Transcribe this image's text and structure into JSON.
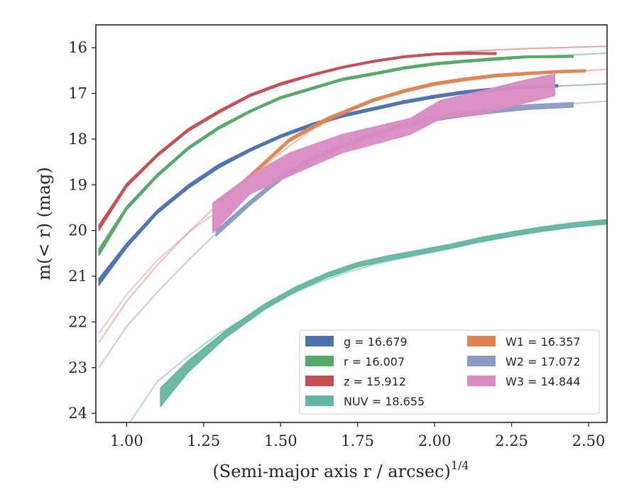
{
  "chart_data": {
    "type": "line",
    "xlabel": "(Semi-major axis r / arcsec)",
    "xlabel_superscript": "1/4",
    "ylabel": "m(< r) (mag)",
    "xlim": [
      0.9,
      2.56
    ],
    "ylim": [
      24.2,
      15.5
    ],
    "y_inverted": true,
    "x_ticks": [
      "1.00",
      "1.25",
      "1.50",
      "1.75",
      "2.00",
      "2.25",
      "2.50"
    ],
    "y_ticks": [
      "16",
      "17",
      "18",
      "19",
      "20",
      "21",
      "22",
      "23",
      "24"
    ],
    "grid": false,
    "legend_position": "lower-right",
    "series": [
      {
        "name": "g",
        "legend": "g = 16.679",
        "color": "#4C72B0",
        "faint": [
          [
            0.91,
            21.15
          ],
          [
            1.0,
            20.35
          ],
          [
            1.1,
            19.6
          ],
          [
            1.2,
            19.05
          ],
          [
            1.3,
            18.6
          ],
          [
            1.4,
            18.25
          ],
          [
            1.5,
            17.95
          ],
          [
            1.6,
            17.7
          ],
          [
            1.7,
            17.5
          ],
          [
            1.8,
            17.35
          ],
          [
            1.9,
            17.2
          ],
          [
            2.0,
            17.08
          ],
          [
            2.1,
            16.98
          ],
          [
            2.2,
            16.92
          ],
          [
            2.3,
            16.87
          ],
          [
            2.4,
            16.84
          ],
          [
            2.5,
            16.81
          ],
          [
            2.56,
            16.79
          ]
        ],
        "band": [
          [
            0.91,
            21.2,
            21.05
          ],
          [
            1.0,
            20.38,
            20.28
          ],
          [
            1.1,
            19.63,
            19.55
          ],
          [
            1.2,
            19.08,
            19.0
          ],
          [
            1.3,
            18.63,
            18.55
          ],
          [
            1.4,
            18.27,
            18.21
          ],
          [
            1.5,
            17.97,
            17.91
          ],
          [
            1.6,
            17.72,
            17.66
          ],
          [
            1.7,
            17.52,
            17.46
          ],
          [
            1.8,
            17.37,
            17.31
          ],
          [
            1.9,
            17.22,
            17.16
          ],
          [
            2.0,
            17.1,
            17.04
          ],
          [
            2.1,
            17.0,
            16.94
          ],
          [
            2.2,
            16.94,
            16.88
          ],
          [
            2.3,
            16.89,
            16.84
          ],
          [
            2.4,
            16.86,
            16.81
          ]
        ]
      },
      {
        "name": "r",
        "legend": "r = 16.007",
        "color": "#55A868",
        "faint": [
          [
            0.91,
            20.45
          ],
          [
            1.0,
            19.5
          ],
          [
            1.1,
            18.8
          ],
          [
            1.2,
            18.2
          ],
          [
            1.3,
            17.75
          ],
          [
            1.4,
            17.4
          ],
          [
            1.5,
            17.1
          ],
          [
            1.6,
            16.9
          ],
          [
            1.7,
            16.7
          ],
          [
            1.8,
            16.58
          ],
          [
            1.9,
            16.45
          ],
          [
            2.0,
            16.36
          ],
          [
            2.1,
            16.3
          ],
          [
            2.2,
            16.25
          ],
          [
            2.3,
            16.2
          ],
          [
            2.4,
            16.17
          ],
          [
            2.5,
            16.14
          ],
          [
            2.56,
            16.12
          ]
        ],
        "band": [
          [
            0.91,
            20.55,
            20.4
          ],
          [
            1.0,
            19.55,
            19.47
          ],
          [
            1.1,
            18.83,
            18.76
          ],
          [
            1.2,
            18.23,
            18.17
          ],
          [
            1.3,
            17.78,
            17.72
          ],
          [
            1.4,
            17.42,
            17.37
          ],
          [
            1.5,
            17.12,
            17.07
          ],
          [
            1.6,
            16.92,
            16.87
          ],
          [
            1.7,
            16.72,
            16.67
          ],
          [
            1.8,
            16.6,
            16.55
          ],
          [
            1.9,
            16.47,
            16.42
          ],
          [
            2.0,
            16.38,
            16.33
          ],
          [
            2.1,
            16.32,
            16.27
          ],
          [
            2.2,
            16.27,
            16.22
          ],
          [
            2.3,
            16.22,
            16.18
          ],
          [
            2.45,
            16.21,
            16.17
          ]
        ]
      },
      {
        "name": "z",
        "legend": "z = 15.912",
        "color": "#C44E52",
        "faint": [
          [
            0.91,
            19.9
          ],
          [
            1.0,
            19.0
          ],
          [
            1.1,
            18.35
          ],
          [
            1.2,
            17.8
          ],
          [
            1.3,
            17.4
          ],
          [
            1.4,
            17.05
          ],
          [
            1.5,
            16.8
          ],
          [
            1.6,
            16.6
          ],
          [
            1.7,
            16.43
          ],
          [
            1.8,
            16.3
          ],
          [
            1.9,
            16.2
          ],
          [
            2.0,
            16.13
          ],
          [
            2.1,
            16.08
          ],
          [
            2.2,
            16.05
          ],
          [
            2.3,
            16.02
          ],
          [
            2.4,
            16.0
          ],
          [
            2.5,
            15.98
          ],
          [
            2.56,
            15.97
          ]
        ],
        "band": [
          [
            0.91,
            20.0,
            19.88
          ],
          [
            1.0,
            19.05,
            18.97
          ],
          [
            1.1,
            18.38,
            18.32
          ],
          [
            1.2,
            17.83,
            17.77
          ],
          [
            1.3,
            17.43,
            17.37
          ],
          [
            1.4,
            17.07,
            17.02
          ],
          [
            1.5,
            16.82,
            16.77
          ],
          [
            1.6,
            16.62,
            16.58
          ],
          [
            1.7,
            16.45,
            16.41
          ],
          [
            1.8,
            16.32,
            16.28
          ],
          [
            1.9,
            16.22,
            16.18
          ],
          [
            2.0,
            16.16,
            16.12
          ],
          [
            2.1,
            16.14,
            16.1
          ],
          [
            2.2,
            16.15,
            16.11
          ]
        ]
      },
      {
        "name": "NUV",
        "legend": "NUV = 18.655",
        "color": "#64B5A1",
        "faint": [
          [
            1.0,
            24.3
          ],
          [
            1.05,
            23.8
          ],
          [
            1.1,
            23.3
          ],
          [
            1.2,
            22.75
          ],
          [
            1.3,
            22.25
          ],
          [
            1.4,
            21.85
          ],
          [
            1.5,
            21.5
          ],
          [
            1.6,
            21.2
          ],
          [
            1.7,
            20.95
          ],
          [
            1.8,
            20.75
          ],
          [
            1.9,
            20.6
          ],
          [
            2.0,
            20.45
          ],
          [
            2.1,
            20.3
          ],
          [
            2.2,
            20.15
          ],
          [
            2.3,
            20.05
          ],
          [
            2.4,
            19.95
          ],
          [
            2.5,
            19.85
          ],
          [
            2.56,
            19.8
          ]
        ],
        "band": [
          [
            1.11,
            23.85,
            23.45
          ],
          [
            1.2,
            23.1,
            22.85
          ],
          [
            1.32,
            22.35,
            22.2
          ],
          [
            1.45,
            21.72,
            21.6
          ],
          [
            1.55,
            21.33,
            21.23
          ],
          [
            1.65,
            21.03,
            20.93
          ],
          [
            1.75,
            20.8,
            20.7
          ],
          [
            1.85,
            20.65,
            20.55
          ],
          [
            1.95,
            20.53,
            20.43
          ],
          [
            2.05,
            20.4,
            20.3
          ],
          [
            2.15,
            20.25,
            20.15
          ],
          [
            2.25,
            20.13,
            20.03
          ],
          [
            2.35,
            20.02,
            19.92
          ],
          [
            2.45,
            19.93,
            19.83
          ],
          [
            2.56,
            19.86,
            19.76
          ]
        ]
      },
      {
        "name": "W1",
        "legend": "W1 = 16.357",
        "color": "#DD8452",
        "faint": [
          [
            0.91,
            22.45
          ],
          [
            1.0,
            21.55
          ],
          [
            1.1,
            20.75
          ],
          [
            1.2,
            20.05
          ],
          [
            1.3,
            19.4
          ],
          [
            1.4,
            18.85
          ],
          [
            1.5,
            18.3
          ],
          [
            1.6,
            17.8
          ],
          [
            1.7,
            17.45
          ],
          [
            1.8,
            17.15
          ],
          [
            1.9,
            16.95
          ],
          [
            2.0,
            16.8
          ],
          [
            2.1,
            16.7
          ],
          [
            2.2,
            16.62
          ],
          [
            2.3,
            16.57
          ],
          [
            2.4,
            16.53
          ],
          [
            2.5,
            16.5
          ],
          [
            2.56,
            16.47
          ]
        ],
        "band": [
          [
            1.3,
            19.42,
            19.35
          ],
          [
            1.4,
            18.85,
            18.78
          ],
          [
            1.53,
            18.05,
            17.98
          ],
          [
            1.65,
            17.6,
            17.53
          ],
          [
            1.8,
            17.18,
            17.12
          ],
          [
            1.9,
            16.98,
            16.92
          ],
          [
            2.0,
            16.82,
            16.76
          ],
          [
            2.1,
            16.72,
            16.66
          ],
          [
            2.2,
            16.64,
            16.58
          ],
          [
            2.3,
            16.59,
            16.54
          ],
          [
            2.4,
            16.55,
            16.5
          ],
          [
            2.49,
            16.53,
            16.48
          ]
        ]
      },
      {
        "name": "W2",
        "legend": "W2 = 17.072",
        "color": "#8C9AC4",
        "faint": [
          [
            0.91,
            23.0
          ],
          [
            1.0,
            22.1
          ],
          [
            1.1,
            21.35
          ],
          [
            1.2,
            20.65
          ],
          [
            1.3,
            20.0
          ],
          [
            1.4,
            19.4
          ],
          [
            1.5,
            18.85
          ],
          [
            1.6,
            18.45
          ],
          [
            1.7,
            18.15
          ],
          [
            1.8,
            17.9
          ],
          [
            1.9,
            17.7
          ],
          [
            2.0,
            17.55
          ],
          [
            2.1,
            17.45
          ],
          [
            2.2,
            17.38
          ],
          [
            2.3,
            17.3
          ],
          [
            2.4,
            17.25
          ],
          [
            2.5,
            17.2
          ],
          [
            2.56,
            17.17
          ]
        ],
        "band": [
          [
            1.29,
            20.12,
            20.0
          ],
          [
            1.4,
            19.45,
            19.35
          ],
          [
            1.5,
            18.9,
            18.8
          ],
          [
            1.6,
            18.5,
            18.4
          ],
          [
            1.7,
            18.2,
            18.1
          ],
          [
            1.8,
            17.95,
            17.85
          ],
          [
            1.9,
            17.75,
            17.65
          ],
          [
            2.0,
            17.6,
            17.5
          ],
          [
            2.1,
            17.5,
            17.4
          ],
          [
            2.2,
            17.42,
            17.32
          ],
          [
            2.3,
            17.35,
            17.25
          ],
          [
            2.45,
            17.3,
            17.2
          ]
        ]
      },
      {
        "name": "W3",
        "legend": "W3 = 14.844",
        "color": "#DA8BC3",
        "faint": [
          [
            0.91,
            22.25
          ],
          [
            1.0,
            21.4
          ],
          [
            1.1,
            20.65
          ],
          [
            1.2,
            20.05
          ],
          [
            1.29,
            19.6
          ]
        ],
        "band": [
          [
            1.28,
            20.05,
            19.4
          ],
          [
            1.4,
            19.2,
            18.8
          ],
          [
            1.53,
            18.8,
            18.3
          ],
          [
            1.7,
            18.3,
            17.9
          ],
          [
            1.92,
            17.9,
            17.55
          ],
          [
            2.02,
            17.55,
            17.15
          ],
          [
            2.15,
            17.45,
            16.95
          ],
          [
            2.3,
            17.2,
            16.7
          ],
          [
            2.39,
            17.05,
            16.58
          ]
        ]
      }
    ]
  }
}
